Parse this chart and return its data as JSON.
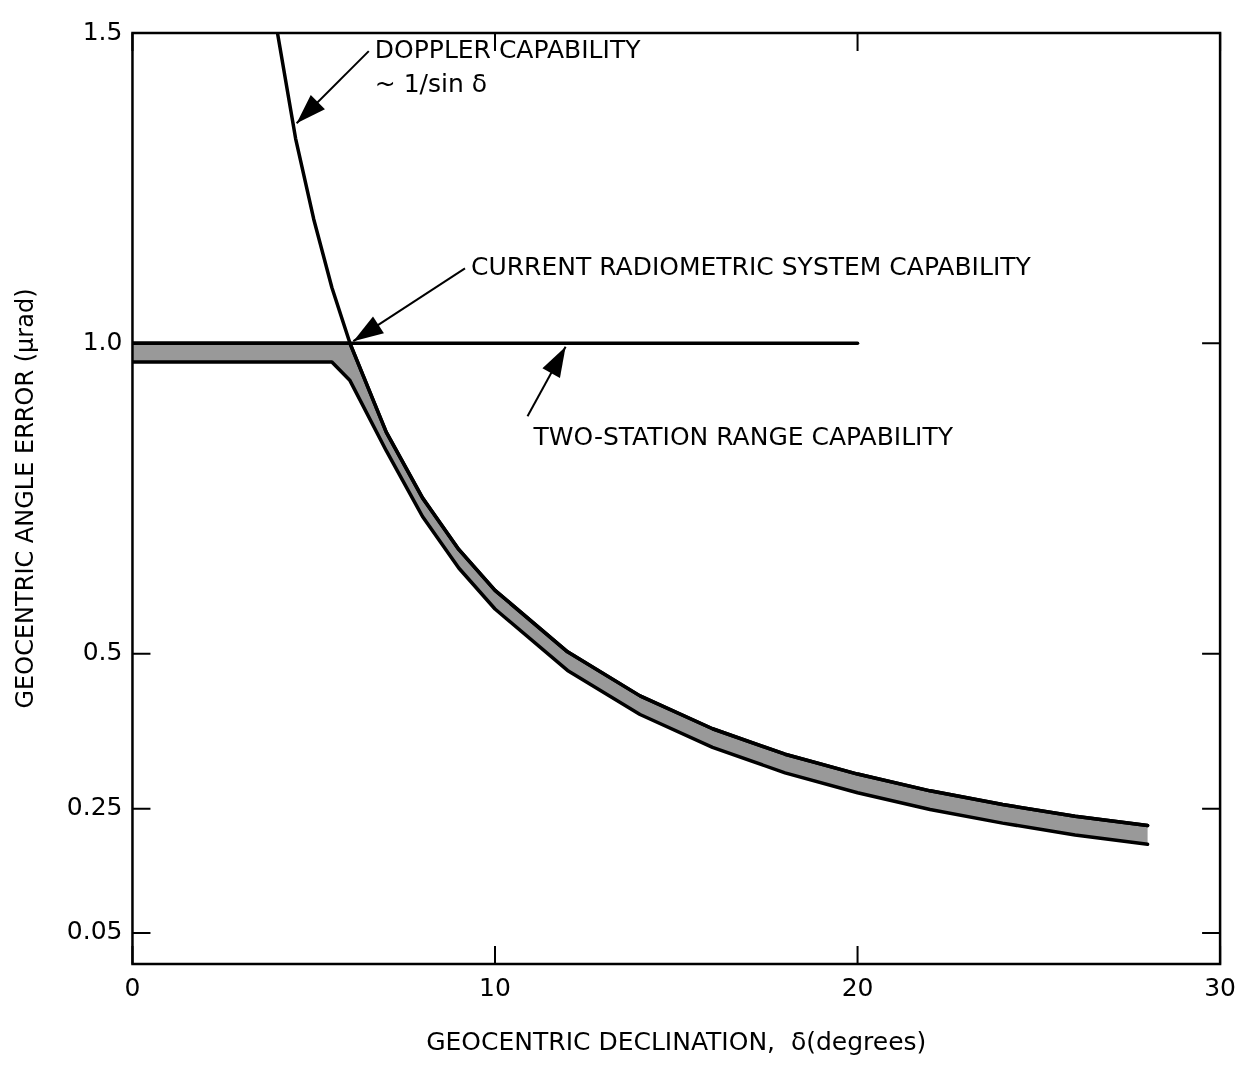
{
  "chart_data": {
    "type": "line",
    "xlabel": "GEOCENTRIC DECLINATION,  δ(degrees)",
    "ylabel": "GEOCENTRIC ANGLE ERROR (μrad)",
    "xlim": [
      0,
      30
    ],
    "xticks": [
      0,
      10,
      20,
      30
    ],
    "ylim": [
      0,
      1.5
    ],
    "yticks": [
      0.05,
      0.25,
      0.5,
      {
        "value": 1,
        "label": "1.0"
      },
      1.5
    ],
    "grid": false,
    "legend": false,
    "marker": "none",
    "line_style": "solid",
    "series": [
      {
        "type": "line",
        "color": "#000000",
        "x": [
          0,
          5.5,
          6,
          7,
          8,
          9,
          10,
          12,
          14,
          16,
          18,
          20,
          22,
          24,
          26,
          28
        ],
        "values": [
          1.0,
          1.0,
          1.0,
          0.857,
          0.751,
          0.668,
          0.602,
          0.503,
          0.432,
          0.379,
          0.338,
          0.306,
          0.279,
          0.257,
          0.238,
          0.223
        ],
        "lower": [
          0.97,
          0.97,
          0.94,
          0.827,
          0.721,
          0.638,
          0.572,
          0.473,
          0.402,
          0.349,
          0.308,
          0.276,
          0.249,
          0.227,
          0.208,
          0.193
        ],
        "upper": [
          1.0,
          1.0,
          1.0,
          0.857,
          0.751,
          0.668,
          0.602,
          0.503,
          0.432,
          0.379,
          0.338,
          0.306,
          0.279,
          0.257,
          0.238,
          0.223
        ]
      },
      {
        "type": "line",
        "color": "#000000",
        "x": [
          4,
          4.5,
          5,
          5.5,
          6,
          7,
          8,
          9,
          10,
          12,
          14,
          16,
          18,
          20,
          22,
          24,
          26,
          28
        ],
        "values": [
          1.5,
          1.33,
          1.2,
          1.09,
          1.0,
          0.857,
          0.751,
          0.668,
          0.602,
          0.503,
          0.432,
          0.379,
          0.338,
          0.306,
          0.279,
          0.257,
          0.238,
          0.223
        ]
      },
      {
        "type": "line",
        "color": "#000000",
        "x": [
          0,
          20
        ],
        "values": [
          1.0,
          1.0
        ]
      },
      {
        "type": "line",
        "color": "#000000",
        "x": [
          0,
          5.5,
          6,
          7,
          8,
          9,
          10,
          12,
          14,
          16,
          18,
          20,
          22,
          24,
          26,
          28
        ],
        "values": [
          0.97,
          0.97,
          0.94,
          0.827,
          0.721,
          0.638,
          0.572,
          0.473,
          0.402,
          0.349,
          0.308,
          0.276,
          0.249,
          0.227,
          0.208,
          0.193
        ]
      }
    ],
    "annotations": [
      {
        "text": "DOPPLER CAPABILITY\n~ 1/sin δ",
        "x": 4.45,
        "y": 1.35
      },
      {
        "text": "CURRENT RADIOMETRIC SYSTEM CAPABILITY",
        "x": 6,
        "y": 1.0
      },
      {
        "text": "TWO-STATION RANGE CAPABILITY",
        "x": 12,
        "y": 1.0
      }
    ]
  }
}
